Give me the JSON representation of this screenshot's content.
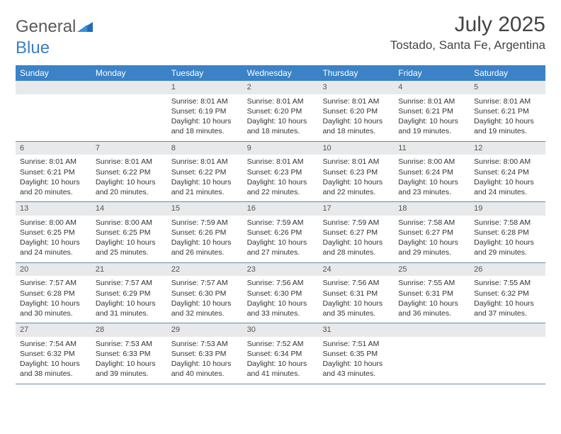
{
  "logo": {
    "text1": "General",
    "text2": "Blue"
  },
  "title": "July 2025",
  "location": "Tostado, Santa Fe, Argentina",
  "colors": {
    "header_bg": "#3b82c7",
    "header_text": "#ffffff",
    "daynum_bg": "#e8e9ea",
    "border": "#6a88a8",
    "logo_gray": "#5a5a5a",
    "logo_blue": "#3b7fc4"
  },
  "weekdays": [
    "Sunday",
    "Monday",
    "Tuesday",
    "Wednesday",
    "Thursday",
    "Friday",
    "Saturday"
  ],
  "weeks": [
    [
      null,
      null,
      {
        "n": "1",
        "sunrise": "8:01 AM",
        "sunset": "6:19 PM",
        "daylight": "10 hours and 18 minutes."
      },
      {
        "n": "2",
        "sunrise": "8:01 AM",
        "sunset": "6:20 PM",
        "daylight": "10 hours and 18 minutes."
      },
      {
        "n": "3",
        "sunrise": "8:01 AM",
        "sunset": "6:20 PM",
        "daylight": "10 hours and 18 minutes."
      },
      {
        "n": "4",
        "sunrise": "8:01 AM",
        "sunset": "6:21 PM",
        "daylight": "10 hours and 19 minutes."
      },
      {
        "n": "5",
        "sunrise": "8:01 AM",
        "sunset": "6:21 PM",
        "daylight": "10 hours and 19 minutes."
      }
    ],
    [
      {
        "n": "6",
        "sunrise": "8:01 AM",
        "sunset": "6:21 PM",
        "daylight": "10 hours and 20 minutes."
      },
      {
        "n": "7",
        "sunrise": "8:01 AM",
        "sunset": "6:22 PM",
        "daylight": "10 hours and 20 minutes."
      },
      {
        "n": "8",
        "sunrise": "8:01 AM",
        "sunset": "6:22 PM",
        "daylight": "10 hours and 21 minutes."
      },
      {
        "n": "9",
        "sunrise": "8:01 AM",
        "sunset": "6:23 PM",
        "daylight": "10 hours and 22 minutes."
      },
      {
        "n": "10",
        "sunrise": "8:01 AM",
        "sunset": "6:23 PM",
        "daylight": "10 hours and 22 minutes."
      },
      {
        "n": "11",
        "sunrise": "8:00 AM",
        "sunset": "6:24 PM",
        "daylight": "10 hours and 23 minutes."
      },
      {
        "n": "12",
        "sunrise": "8:00 AM",
        "sunset": "6:24 PM",
        "daylight": "10 hours and 24 minutes."
      }
    ],
    [
      {
        "n": "13",
        "sunrise": "8:00 AM",
        "sunset": "6:25 PM",
        "daylight": "10 hours and 24 minutes."
      },
      {
        "n": "14",
        "sunrise": "8:00 AM",
        "sunset": "6:25 PM",
        "daylight": "10 hours and 25 minutes."
      },
      {
        "n": "15",
        "sunrise": "7:59 AM",
        "sunset": "6:26 PM",
        "daylight": "10 hours and 26 minutes."
      },
      {
        "n": "16",
        "sunrise": "7:59 AM",
        "sunset": "6:26 PM",
        "daylight": "10 hours and 27 minutes."
      },
      {
        "n": "17",
        "sunrise": "7:59 AM",
        "sunset": "6:27 PM",
        "daylight": "10 hours and 28 minutes."
      },
      {
        "n": "18",
        "sunrise": "7:58 AM",
        "sunset": "6:27 PM",
        "daylight": "10 hours and 29 minutes."
      },
      {
        "n": "19",
        "sunrise": "7:58 AM",
        "sunset": "6:28 PM",
        "daylight": "10 hours and 29 minutes."
      }
    ],
    [
      {
        "n": "20",
        "sunrise": "7:57 AM",
        "sunset": "6:28 PM",
        "daylight": "10 hours and 30 minutes."
      },
      {
        "n": "21",
        "sunrise": "7:57 AM",
        "sunset": "6:29 PM",
        "daylight": "10 hours and 31 minutes."
      },
      {
        "n": "22",
        "sunrise": "7:57 AM",
        "sunset": "6:30 PM",
        "daylight": "10 hours and 32 minutes."
      },
      {
        "n": "23",
        "sunrise": "7:56 AM",
        "sunset": "6:30 PM",
        "daylight": "10 hours and 33 minutes."
      },
      {
        "n": "24",
        "sunrise": "7:56 AM",
        "sunset": "6:31 PM",
        "daylight": "10 hours and 35 minutes."
      },
      {
        "n": "25",
        "sunrise": "7:55 AM",
        "sunset": "6:31 PM",
        "daylight": "10 hours and 36 minutes."
      },
      {
        "n": "26",
        "sunrise": "7:55 AM",
        "sunset": "6:32 PM",
        "daylight": "10 hours and 37 minutes."
      }
    ],
    [
      {
        "n": "27",
        "sunrise": "7:54 AM",
        "sunset": "6:32 PM",
        "daylight": "10 hours and 38 minutes."
      },
      {
        "n": "28",
        "sunrise": "7:53 AM",
        "sunset": "6:33 PM",
        "daylight": "10 hours and 39 minutes."
      },
      {
        "n": "29",
        "sunrise": "7:53 AM",
        "sunset": "6:33 PM",
        "daylight": "10 hours and 40 minutes."
      },
      {
        "n": "30",
        "sunrise": "7:52 AM",
        "sunset": "6:34 PM",
        "daylight": "10 hours and 41 minutes."
      },
      {
        "n": "31",
        "sunrise": "7:51 AM",
        "sunset": "6:35 PM",
        "daylight": "10 hours and 43 minutes."
      },
      null,
      null
    ]
  ],
  "labels": {
    "sunrise": "Sunrise:",
    "sunset": "Sunset:",
    "daylight": "Daylight:"
  }
}
